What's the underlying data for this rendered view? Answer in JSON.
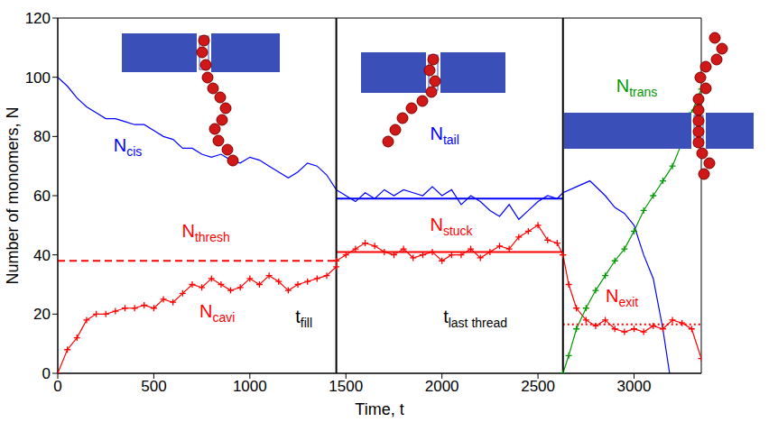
{
  "chart_data": {
    "type": "line",
    "x_label": "Time, t",
    "y_label": "Number of monomers, N",
    "xlim": [
      0,
      3350
    ],
    "xticks": [
      0,
      500,
      1000,
      1500,
      2000,
      2500,
      3000
    ],
    "ylim": [
      0,
      120
    ],
    "yticks": [
      0,
      20,
      40,
      60,
      80,
      100,
      120
    ],
    "grid": false,
    "series": [
      {
        "color": "#0000ff",
        "marker": "none",
        "line_style": "solid",
        "label": {
          "text": "N",
          "sub": "cis",
          "x": 290,
          "y": 75
        },
        "x": [
          0,
          50,
          100,
          150,
          200,
          250,
          300,
          350,
          400,
          450,
          500,
          550,
          600,
          650,
          700,
          750,
          800,
          850,
          900,
          950,
          1000,
          1050,
          1100,
          1150,
          1200,
          1250,
          1300,
          1350,
          1400,
          1450
        ],
        "values": [
          100,
          97,
          93,
          90,
          88,
          86,
          86,
          85,
          84,
          84,
          82,
          80,
          79,
          76,
          76,
          74,
          73,
          74,
          72,
          71,
          73,
          72,
          70,
          68,
          66,
          68,
          71,
          70,
          67,
          62
        ]
      },
      {
        "color": "#0000ff",
        "marker": "none",
        "line_style": "solid",
        "label": {
          "text": "N",
          "sub": "tail",
          "x": 1938,
          "y": 79
        },
        "x": [
          1450,
          1500,
          1550,
          1600,
          1650,
          1700,
          1750,
          1800,
          1850,
          1900,
          1950,
          2000,
          2050,
          2100,
          2150,
          2200,
          2250,
          2300,
          2350,
          2400,
          2450,
          2500,
          2550,
          2600,
          2630,
          2700,
          2770,
          2850,
          2900,
          2950,
          3000,
          3050,
          3100,
          3150,
          3185
        ],
        "values": [
          62,
          60,
          58,
          61,
          59,
          62,
          60,
          62,
          61,
          60,
          63,
          60,
          62,
          57,
          60,
          58,
          55,
          53,
          57,
          52,
          55,
          58,
          60,
          59,
          61,
          63,
          65,
          60,
          56,
          54,
          50,
          40,
          32,
          15,
          0
        ]
      },
      {
        "color": "#ff0000",
        "marker": "plus",
        "line_style": "solid",
        "label": {
          "text": "N",
          "sub": "cavi",
          "x": 738,
          "y": 19
        },
        "x": [
          0,
          50,
          100,
          150,
          200,
          250,
          300,
          350,
          400,
          450,
          500,
          550,
          600,
          650,
          700,
          750,
          800,
          850,
          900,
          950,
          1000,
          1050,
          1100,
          1150,
          1200,
          1250,
          1300,
          1350,
          1400,
          1450
        ],
        "values": [
          0,
          8,
          12,
          18,
          20,
          20,
          21,
          22,
          22,
          23,
          22,
          25,
          24,
          27,
          30,
          29,
          32,
          30,
          28,
          29,
          32,
          30,
          33,
          31,
          28,
          30,
          31,
          32,
          33,
          36
        ]
      },
      {
        "color": "#ff0000",
        "marker": "plus",
        "line_style": "solid",
        "label": {
          "text": "N",
          "sub": "stuck",
          "x": 1938,
          "y": 48
        },
        "x": [
          1450,
          1500,
          1550,
          1600,
          1650,
          1700,
          1750,
          1800,
          1850,
          1900,
          1950,
          2000,
          2050,
          2100,
          2150,
          2200,
          2250,
          2300,
          2350,
          2400,
          2450,
          2500,
          2550,
          2600,
          2630
        ],
        "values": [
          38,
          40,
          42,
          44,
          43,
          41,
          40,
          42,
          39,
          40,
          41,
          38,
          40,
          40,
          42,
          39,
          41,
          43,
          42,
          46,
          48,
          50,
          45,
          44,
          40
        ]
      },
      {
        "color": "#ff0000",
        "marker": "plus",
        "line_style": "solid",
        "label": {
          "text": "N",
          "sub": "exit",
          "x": 2852,
          "y": 24
        },
        "x": [
          2630,
          2660,
          2700,
          2750,
          2800,
          2850,
          2900,
          2950,
          3000,
          3050,
          3100,
          3150,
          3200,
          3250,
          3300,
          3350
        ],
        "values": [
          40,
          30,
          22,
          18,
          16,
          18,
          15,
          14,
          15,
          14,
          16,
          15,
          18,
          17,
          15,
          5
        ]
      },
      {
        "color": "#009900",
        "marker": "plus",
        "line_style": "solid",
        "label": {
          "text": "N",
          "sub": "trans",
          "x": 2907,
          "y": 95
        },
        "x": [
          2630,
          2660,
          2700,
          2750,
          2800,
          2850,
          2900,
          2950,
          3000,
          3050,
          3100,
          3150,
          3200,
          3250,
          3300,
          3350
        ],
        "values": [
          0,
          6,
          15,
          22,
          28,
          33,
          38,
          42,
          48,
          55,
          60,
          65,
          70,
          78,
          88,
          96
        ]
      },
      {
        "color": "#ff0000",
        "marker": "none",
        "line_style": "dashed",
        "label": {
          "text": "N",
          "sub": "thresh",
          "x": 646,
          "y": 46
        },
        "x": [
          0,
          1450
        ],
        "values": [
          38,
          38
        ]
      },
      {
        "color": "#ff0000",
        "marker": "none",
        "line_style": "solid",
        "x": [
          1450,
          2630
        ],
        "values": [
          41,
          41
        ]
      },
      {
        "color": "#0000ff",
        "marker": "none",
        "line_style": "solid",
        "x": [
          1450,
          2630
        ],
        "values": [
          59,
          59
        ]
      },
      {
        "color": "#ff0000",
        "marker": "none",
        "line_style": "dotted",
        "x": [
          2630,
          3350
        ],
        "values": [
          16.5,
          16.5
        ]
      }
    ],
    "vlines": [
      {
        "x": 1450,
        "color": "#000000",
        "label": {
          "text": "t",
          "sub": "fill",
          "x": 1237,
          "y": 17
        }
      },
      {
        "x": 2630,
        "color": "#000000",
        "label": {
          "text": "t",
          "sub": "last thread",
          "x": 2007,
          "y": 17
        }
      }
    ]
  }
}
